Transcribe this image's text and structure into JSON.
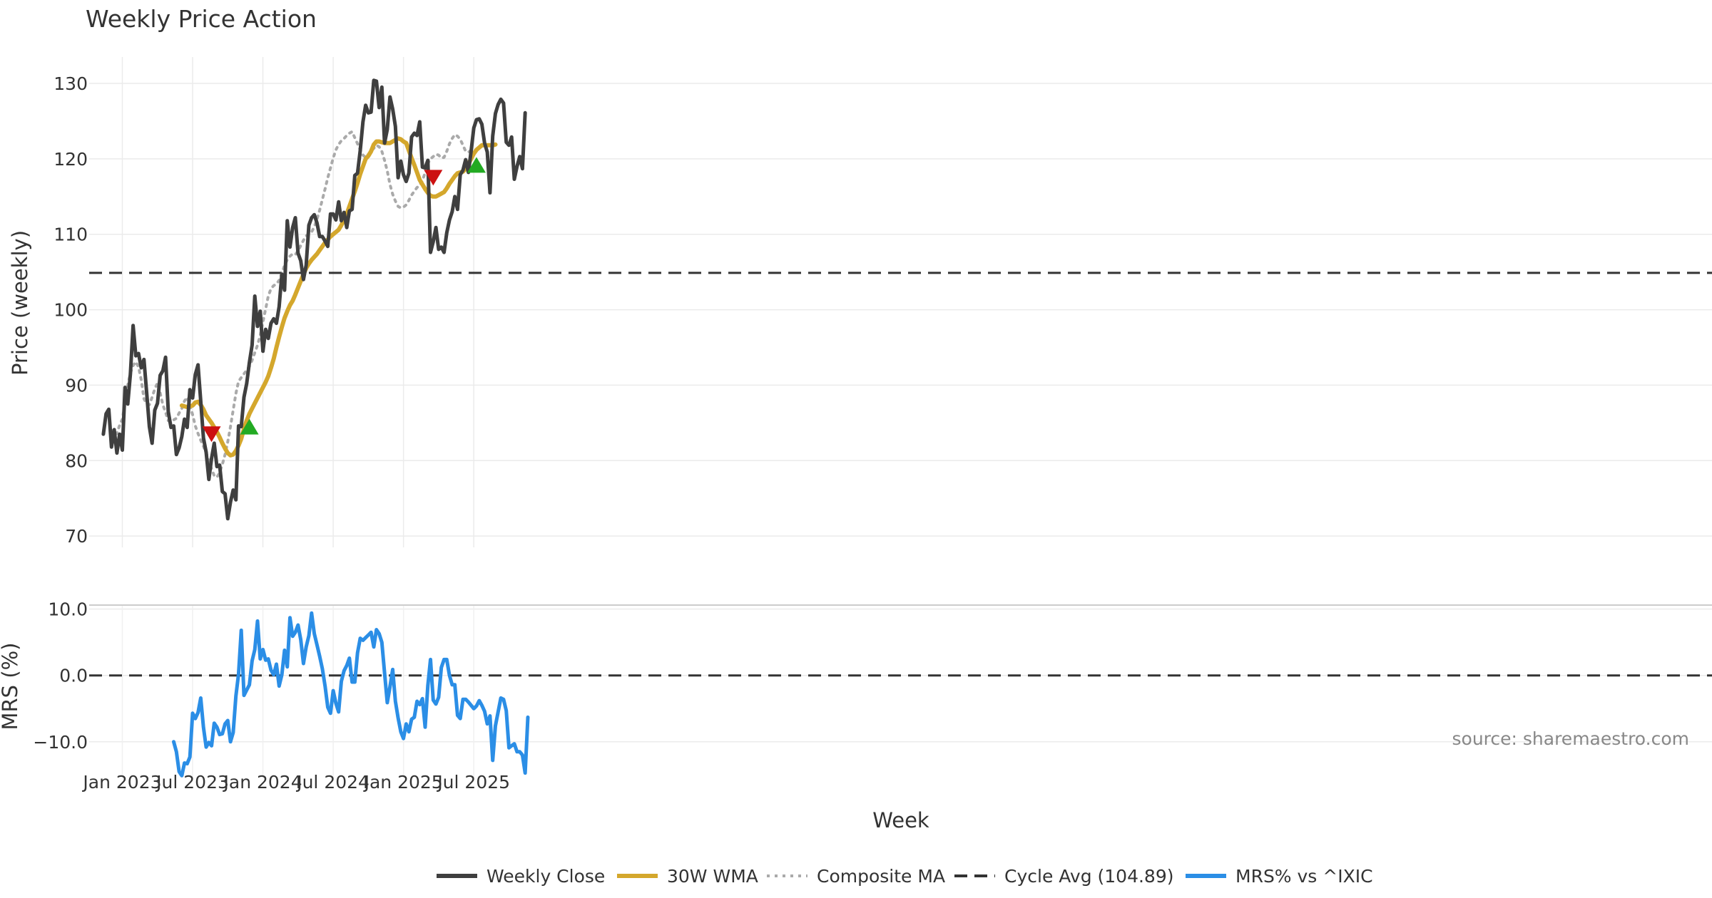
{
  "chart_data": [
    {
      "type": "line",
      "title": "Weekly Price Action",
      "ylabel": "Price (weekly)",
      "xlabel": "Week",
      "ylim": [
        68.5,
        133.5
      ],
      "yticks": [
        70,
        80,
        90,
        100,
        110,
        120,
        130
      ],
      "x_tick_labels": [
        {
          "week": 12,
          "label": "Jan 2023"
        },
        {
          "week": 38,
          "label": "Jul 2023"
        },
        {
          "week": 64,
          "label": "Jan 2024"
        },
        {
          "week": 90,
          "label": "Jul 2024"
        },
        {
          "week": 116,
          "label": "Jan 2025"
        },
        {
          "week": 142,
          "label": "Jul 2025"
        }
      ],
      "series": [
        {
          "name": "Weekly Close",
          "color": "#3f3f3f",
          "start_week": 5,
          "values": [
            83.5,
            86.2,
            86.8,
            81.8,
            84.1,
            81.0,
            83.5,
            81.4,
            89.7,
            87.5,
            91.5,
            97.9,
            93.9,
            94.2,
            92.3,
            93.4,
            89.0,
            84.5,
            82.3,
            86.7,
            87.6,
            91.3,
            91.9,
            93.7,
            86.5,
            84.4,
            84.6,
            80.8,
            81.7,
            83.2,
            85.5,
            84.4,
            89.4,
            88.3,
            91.4,
            92.7,
            87.9,
            83.0,
            81.1,
            77.5,
            80.3,
            82.3,
            79.2,
            79.4,
            75.9,
            75.6,
            72.3,
            74.5,
            76.1,
            74.8,
            84.6,
            84.5,
            88.4,
            90.2,
            93.0,
            95.3,
            101.8,
            97.8,
            99.8,
            94.5,
            97.4,
            96.2,
            98.2,
            98.8,
            98.2,
            100.4,
            104.7,
            102.6,
            111.8,
            108.3,
            110.9,
            112.2,
            107.5,
            106.5,
            104.0,
            105.9,
            111.2,
            112.2,
            112.6,
            111.5,
            109.7,
            109.7,
            109.1,
            108.4,
            112.7,
            112.7,
            111.9,
            114.3,
            111.8,
            112.9,
            110.9,
            113.1,
            113.3,
            117.8,
            118.1,
            121.1,
            124.9,
            127.1,
            126.1,
            126.2,
            130.4,
            130.3,
            126.8,
            129.5,
            122.1,
            123.9,
            128.2,
            126.6,
            124.3,
            117.5,
            119.7,
            117.9,
            117.0,
            118.1,
            122.9,
            123.4,
            123.1,
            124.9,
            118.9,
            118.8,
            119.8,
            107.6,
            109.0,
            110.9,
            108.0,
            108.3,
            107.6,
            110.2,
            111.9,
            113.0,
            115.0,
            113.3,
            117.9,
            118.5,
            119.9,
            118.2,
            121.0,
            124.1,
            125.2,
            125.3,
            124.6,
            122.1,
            120.9,
            115.5,
            123.0,
            126.0,
            127.2,
            127.9,
            127.4,
            122.2,
            121.8,
            122.9,
            117.3,
            119.0,
            120.3,
            118.7,
            126.1
          ]
        },
        {
          "name": "30W WMA",
          "color": "#d4a72c",
          "start_week": 34,
          "values": [
            87.3,
            87.2,
            87.1,
            87.2,
            87.3,
            87.7,
            87.8,
            87.4,
            86.8,
            86.0,
            85.5,
            85.0,
            84.4,
            83.8,
            83.1,
            82.3,
            81.6,
            81.0,
            80.7,
            80.8,
            81.3,
            82.0,
            82.9,
            84.2,
            85.3,
            86.2,
            86.9,
            87.6,
            88.3,
            89.0,
            89.7,
            90.4,
            91.2,
            92.3,
            93.5,
            95.0,
            96.4,
            97.7,
            98.9,
            99.8,
            100.6,
            101.2,
            102.0,
            102.9,
            103.8,
            104.7,
            105.5,
            106.1,
            106.6,
            107.0,
            107.4,
            107.9,
            108.4,
            108.9,
            109.3,
            109.7,
            110.0,
            110.3,
            110.6,
            111.2,
            111.9,
            112.7,
            113.7,
            114.7,
            115.7,
            116.8,
            118.0,
            119.0,
            120.0,
            120.4,
            121.0,
            121.9,
            122.3,
            122.3,
            122.2,
            122.1,
            122.1,
            122.1,
            122.3,
            122.5,
            122.7,
            122.6,
            122.3,
            122.1,
            121.1,
            120.1,
            119.2,
            118.2,
            117.2,
            116.6,
            116.0,
            115.5,
            115.1,
            115.0,
            115.0,
            115.2,
            115.4,
            115.6,
            116.1,
            116.7,
            117.2,
            117.7,
            118.1,
            118.2,
            118.3,
            118.7,
            119.3,
            120.0,
            120.7,
            121.2,
            121.5,
            121.8,
            121.8,
            121.8,
            121.8,
            121.8,
            121.9
          ]
        },
        {
          "name": "Composite MA",
          "color": "#aaaaaa",
          "start_week": 8,
          "values": [
            84.0,
            83.4,
            83.6,
            84.7,
            85.5,
            87.7,
            90.0,
            91.6,
            92.6,
            93.1,
            92.4,
            90.7,
            88.2,
            87.5,
            87.4,
            88.4,
            89.5,
            90.3,
            89.0,
            87.4,
            86.4,
            85.3,
            85.1,
            85.4,
            85.6,
            86.3,
            86.9,
            87.9,
            88.4,
            87.3,
            86.1,
            84.6,
            83.6,
            82.7,
            81.9,
            81.0,
            80.0,
            78.9,
            78.0,
            77.8,
            78.4,
            79.5,
            80.8,
            82.5,
            84.5,
            86.7,
            88.9,
            90.5,
            91.0,
            91.5,
            92.0,
            92.5,
            93.3,
            94.3,
            95.3,
            96.6,
            98.4,
            100.1,
            101.8,
            102.8,
            103.2,
            103.4,
            103.9,
            104.8,
            105.9,
            106.6,
            107.1,
            107.4,
            107.3,
            107.8,
            108.5,
            109.2,
            109.8,
            110.0,
            110.3,
            111.0,
            112.0,
            113.2,
            114.6,
            116.0,
            117.5,
            118.8,
            120.1,
            121.2,
            121.9,
            122.4,
            122.7,
            123.1,
            123.4,
            123.6,
            122.8,
            122.0,
            121.2,
            120.5,
            120.2,
            120.6,
            121.0,
            121.4,
            121.8,
            121.6,
            121.0,
            119.8,
            118.4,
            116.6,
            115.3,
            114.4,
            113.7,
            113.5,
            113.6,
            113.9,
            114.5,
            115.2,
            115.7,
            116.2,
            116.5,
            117.1,
            118.2,
            119.4,
            120.0,
            120.3,
            120.6,
            120.5,
            120.1,
            120.2,
            121.0,
            122.0,
            122.7,
            123.2,
            123.0,
            122.6,
            121.8,
            121.0,
            120.9,
            121.1
          ]
        },
        {
          "name": "Cycle Avg (104.89)",
          "color": "#333333",
          "value": 104.89
        }
      ],
      "signals": [
        {
          "type": "sell",
          "week": 45,
          "value": 83.5,
          "color": "#cc1111"
        },
        {
          "type": "buy",
          "week": 59,
          "value": 84.5,
          "color": "#22aa22"
        },
        {
          "type": "sell",
          "week": 127,
          "value": 117.5,
          "color": "#cc1111"
        },
        {
          "type": "buy",
          "week": 143,
          "value": 119.2,
          "color": "#22aa22"
        }
      ]
    },
    {
      "type": "line",
      "ylabel": "MRS (%)",
      "ylim": [
        -15.5,
        10.5
      ],
      "yticks": [
        10.0,
        0.0,
        -10.0
      ],
      "ytick_labels": [
        "10.0",
        "0.0",
        "−10.0"
      ],
      "series": [
        {
          "name": "MRS% vs ^IXIC",
          "color": "#2b8ee6",
          "start_week": 31,
          "values": [
            -10.0,
            -11.5,
            -14.5,
            -15.1,
            -13.2,
            -13.3,
            -12.3,
            -5.7,
            -6.5,
            -5.6,
            -3.4,
            -7.8,
            -10.8,
            -10.1,
            -10.6,
            -7.2,
            -7.8,
            -8.9,
            -8.8,
            -7.3,
            -6.8,
            -10.0,
            -8.6,
            -3.1,
            0.2,
            6.8,
            -3.0,
            -2.2,
            -1.4,
            2.2,
            3.9,
            8.2,
            2.5,
            3.9,
            2.3,
            2.5,
            0.8,
            0.1,
            1.7,
            -1.6,
            0.1,
            3.8,
            1.3,
            8.7,
            5.9,
            6.5,
            7.6,
            5.4,
            1.8,
            4.3,
            6.0,
            9.4,
            6.3,
            4.6,
            2.9,
            1.0,
            -1.6,
            -4.8,
            -5.7,
            -2.3,
            -4.2,
            -5.5,
            -0.9,
            0.7,
            1.5,
            2.6,
            -1.0,
            -1.0,
            3.4,
            5.6,
            5.3,
            5.7,
            6.1,
            6.5,
            4.3,
            6.9,
            6.3,
            5.0,
            0.4,
            -4.1,
            -1.7,
            0.9,
            -3.9,
            -6.4,
            -8.5,
            -9.5,
            -7.3,
            -8.5,
            -6.6,
            -6.3,
            -3.9,
            -4.4,
            -3.5,
            -7.8,
            -1.5,
            2.4,
            -3.7,
            -4.3,
            -3.3,
            1.2,
            2.4,
            2.4,
            0.0,
            -1.4,
            -1.4,
            -6.0,
            -6.5,
            -3.6,
            -3.6,
            -4.0,
            -4.5,
            -5.0,
            -4.6,
            -3.8,
            -4.5,
            -5.4,
            -7.3,
            -6.1,
            -12.8,
            -7.6,
            -5.5,
            -3.4,
            -3.6,
            -5.3,
            -10.9,
            -10.6,
            -10.3,
            -11.5,
            -11.5,
            -12.0,
            -14.7,
            -6.3
          ]
        },
        {
          "name": "zero",
          "color": "#333333",
          "value": 0.0
        }
      ]
    }
  ],
  "source_text": "source: sharemaestro.com",
  "legend": [
    {
      "label": "Weekly Close",
      "color": "#3f3f3f",
      "style": "solid"
    },
    {
      "label": "30W WMA",
      "color": "#d4a72c",
      "style": "solid"
    },
    {
      "label": "Composite MA",
      "color": "#aaaaaa",
      "style": "dotted"
    },
    {
      "label": "Cycle Avg (104.89)",
      "color": "#333333",
      "style": "dashed"
    },
    {
      "label": "MRS% vs ^IXIC",
      "color": "#2b8ee6",
      "style": "solid"
    }
  ]
}
